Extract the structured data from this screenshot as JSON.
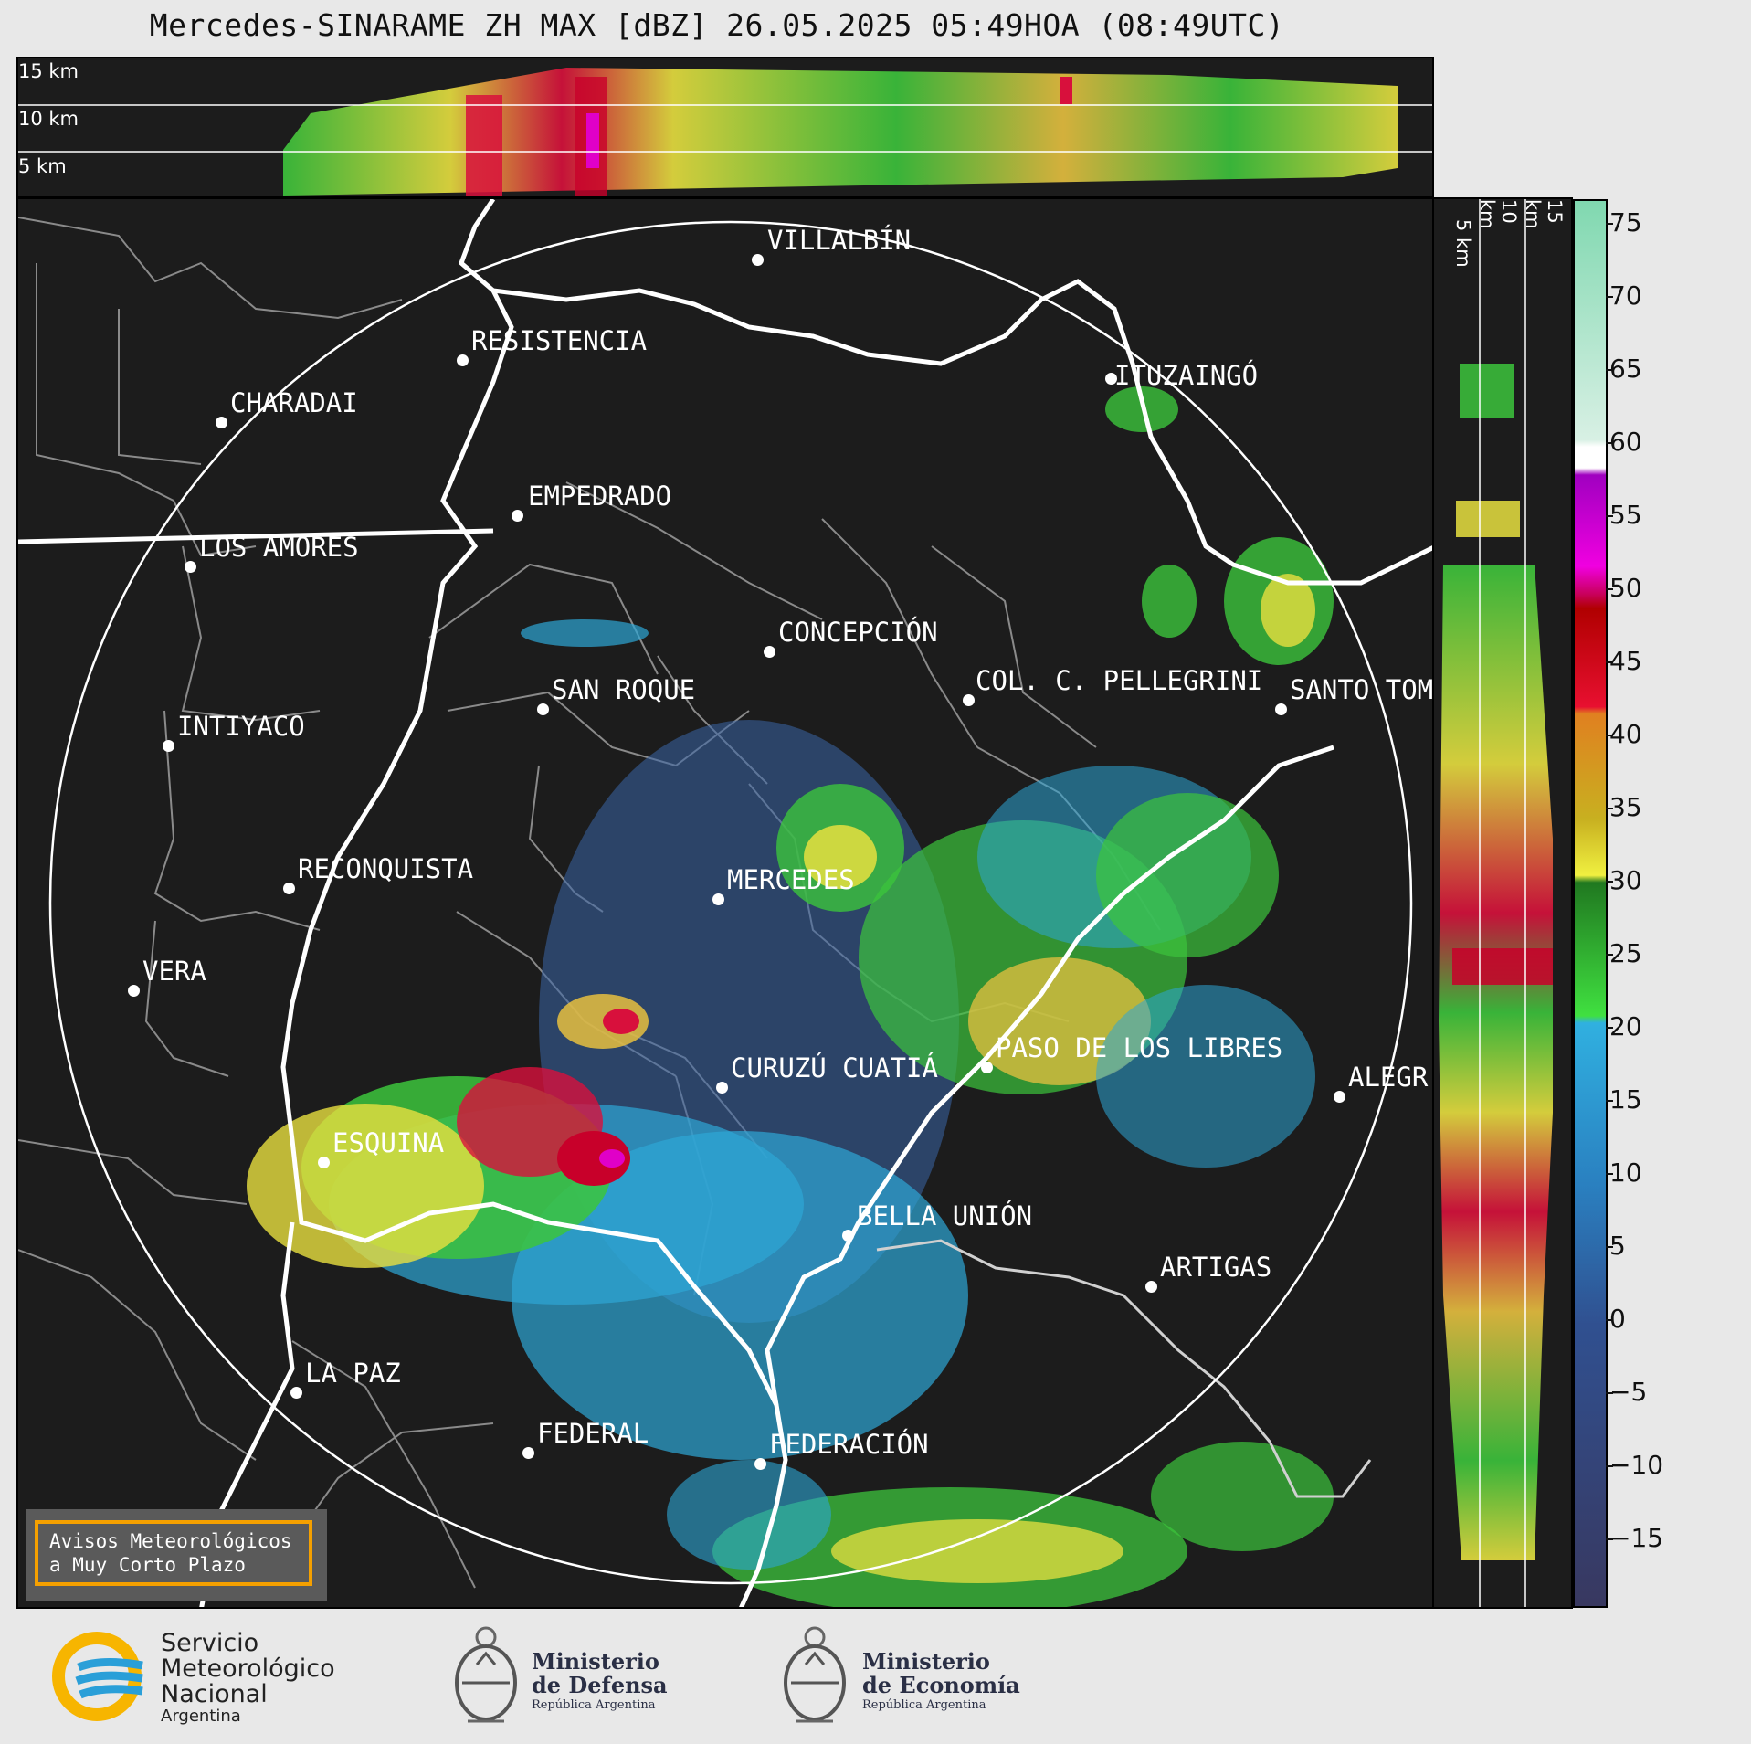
{
  "title": "Mercedes-SINARAME ZH MAX [dBZ] 26.05.2025 05:49HOA (08:49UTC)",
  "top_panel_heights": [
    "15 km",
    "10 km",
    "5 km"
  ],
  "side_panel_heights": [
    "5 km",
    "10 km",
    "15 km"
  ],
  "colorbar": {
    "unit": "dBZ",
    "ticks": [
      "75",
      "70",
      "65",
      "60",
      "55",
      "50",
      "45",
      "40",
      "35",
      "30",
      "25",
      "20",
      "15",
      "10",
      "5",
      "0",
      "−5",
      "−10",
      "−15"
    ],
    "range": [
      -20,
      77
    ]
  },
  "cities": [
    {
      "name": "VILLALBÍN"
    },
    {
      "name": "RESISTENCIA"
    },
    {
      "name": "CHARADAI"
    },
    {
      "name": "ITUZAINGÓ"
    },
    {
      "name": "EMPEDRADO"
    },
    {
      "name": "LOS AMORES"
    },
    {
      "name": "CONCEPCIÓN"
    },
    {
      "name": "SAN ROQUE"
    },
    {
      "name": "COL. C. PELLEGRINI"
    },
    {
      "name": "SANTO TOM"
    },
    {
      "name": "INTIYACO"
    },
    {
      "name": "MERCEDES"
    },
    {
      "name": "RECONQUISTA"
    },
    {
      "name": "VERA"
    },
    {
      "name": "PASO DE LOS LIBRES"
    },
    {
      "name": "CURUZÚ CUATIÁ"
    },
    {
      "name": "ALEGR"
    },
    {
      "name": "ESQUINA"
    },
    {
      "name": "BELLA UNIÓN"
    },
    {
      "name": "ARTIGAS"
    },
    {
      "name": "LA PAZ"
    },
    {
      "name": "FEDERAL"
    },
    {
      "name": "FEDERACIÓN"
    }
  ],
  "avisos": {
    "line1": "Avisos Meteorológicos",
    "line2": "a Muy Corto Plazo"
  },
  "logos": {
    "smn": {
      "line1": "Servicio",
      "line2": "Meteorológico",
      "line3": "Nacional",
      "line4": "Argentina"
    },
    "defensa": {
      "line1": "Ministerio",
      "line2": "de Defensa",
      "line3": "República Argentina"
    },
    "economia": {
      "line1": "Ministerio",
      "line2": "de Economía",
      "line3": "República Argentina"
    }
  },
  "colors": {
    "panel_bg": "#1c1c1c",
    "accent_orange": "#f5a000",
    "smn_blue": "#2a9fd8",
    "smn_yellow": "#f7b500"
  }
}
